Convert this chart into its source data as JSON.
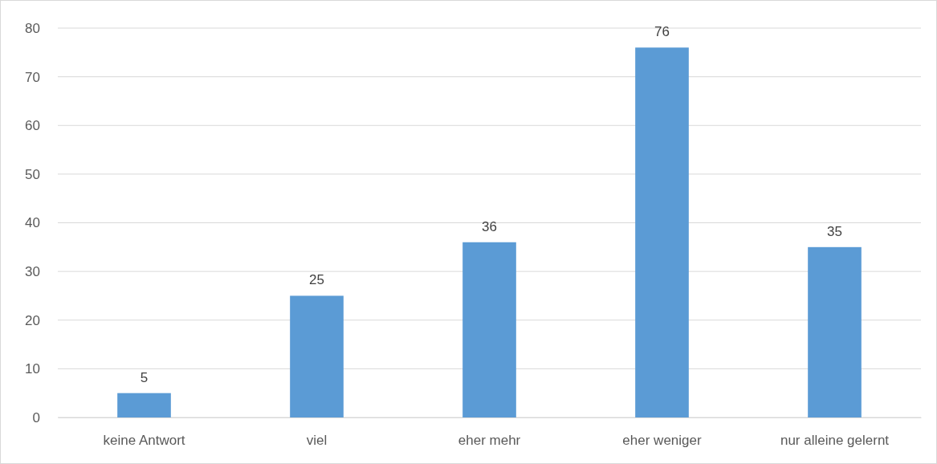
{
  "chart_data": {
    "type": "bar",
    "categories": [
      "keine Antwort",
      "viel",
      "eher mehr",
      "eher weniger",
      "nur alleine gelernt"
    ],
    "values": [
      5,
      25,
      36,
      76,
      35
    ],
    "color": "#5b9bd5",
    "ylim": [
      0,
      80
    ],
    "yticks": [
      0,
      10,
      20,
      30,
      40,
      50,
      60,
      70,
      80
    ],
    "grid": "y",
    "data_labels": true
  }
}
